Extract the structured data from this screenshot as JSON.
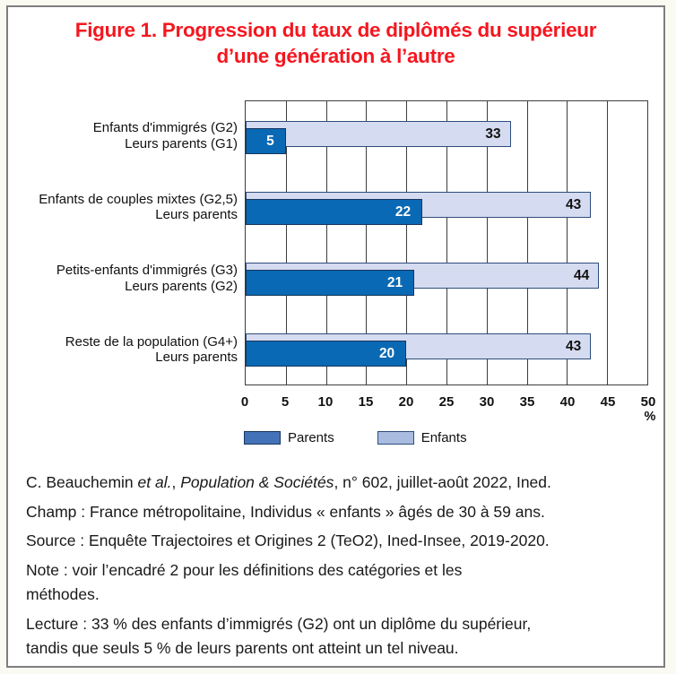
{
  "page": {
    "background": "#fbfaf2",
    "frame_border_color": "#7e7e7e"
  },
  "title": "Figure 1. Progression du taux de diplômés du supérieur\nd’une génération à l’autre",
  "title_color": "#f5161f",
  "chart_data": {
    "type": "bar",
    "orientation": "horizontal",
    "categories": [
      "Enfants d'immigrés (G2)\nLeurs parents (G1)",
      "Enfants de couples mixtes (G2,5)\nLeurs parents",
      "Petits-enfants d'immigrés (G3)\nLeurs parents (G2)",
      "Reste de la population (G4+)\nLeurs parents"
    ],
    "series": [
      {
        "name": "Parents",
        "values": [
          5,
          22,
          21,
          20
        ],
        "bar_color": "#0a69b4",
        "border_color": "#17365d",
        "label_color": "#ffffff",
        "legend_color": "#4472b8"
      },
      {
        "name": "Enfants",
        "values": [
          33,
          43,
          44,
          43
        ],
        "bar_color": "#d5dbf0",
        "border_color": "#2e4d7b",
        "label_color": "#111111",
        "legend_color": "#a9bcdf"
      }
    ],
    "xlim": [
      0,
      50
    ],
    "xticks": [
      "0",
      "5",
      "10",
      "15",
      "20",
      "25",
      "30",
      "35",
      "40",
      "45",
      "50"
    ],
    "x_unit": "%",
    "grid": true,
    "gridline_color": "#3d3d3d",
    "legend_position": "bottom"
  },
  "footer": {
    "paragraphs": [
      {
        "segments": [
          {
            "text": "C. Beauchemin ",
            "italic": false
          },
          {
            "text": "et al.",
            "italic": true
          },
          {
            "text": ", ",
            "italic": false
          },
          {
            "text": "Population & Sociétés",
            "italic": true
          },
          {
            "text": ", n° 602, juillet-août 2022, Ined.",
            "italic": false
          }
        ]
      },
      {
        "segments": [
          {
            "text": "Champ : France métropolitaine, Individus « enfants » âgés de 30 à 59 ans.",
            "italic": false
          }
        ]
      },
      {
        "segments": [
          {
            "text": "Source : Enquête Trajectoires et Origines 2 (TeO2), Ined-Insee, 2019-2020.",
            "italic": false
          }
        ]
      },
      {
        "segments": [
          {
            "text": "Note : voir l’encadré 2 pour les définitions des catégories et les\nméthodes.",
            "italic": false
          }
        ]
      },
      {
        "segments": [
          {
            "text": "Lecture : 33 % des enfants d’immigrés (G2) ont un diplôme du supérieur,\ntandis que seuls 5 % de leurs parents ont atteint un tel niveau.",
            "italic": false
          }
        ]
      }
    ]
  }
}
